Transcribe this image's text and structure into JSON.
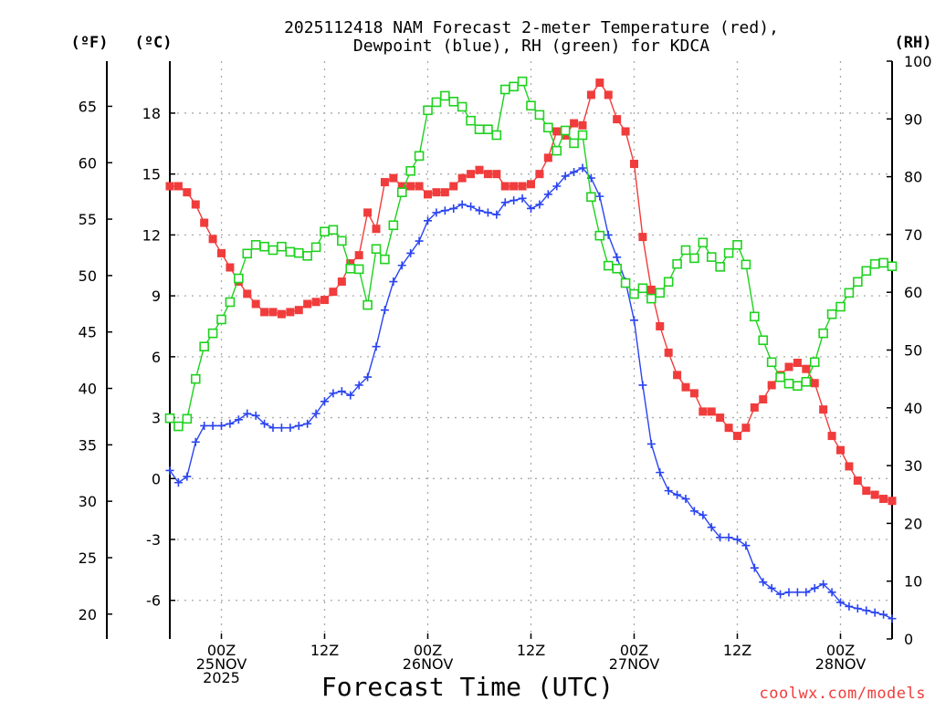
{
  "chart_data": {
    "type": "line",
    "title_line1": "2025112418 NAM Forecast 2-meter Temperature (red),",
    "title_line2": "Dewpoint (blue), RH (green) for KDCA",
    "xlabel": "Forecast Time (UTC)",
    "credit": "coolwx.com/models",
    "unit_f": "(ºF)",
    "unit_c": "(ºC)",
    "unit_rh": "(RH)",
    "x_unit": "forecast hour from 2025-11-24 18Z",
    "xlim": [
      0,
      84
    ],
    "ylim_c": [
      -7.9,
      20.56
    ],
    "ylim_rh": [
      0,
      100
    ],
    "ylim_f": [
      17.8,
      69.0
    ],
    "c_ticks": [
      "-6",
      "-3",
      "0",
      "3",
      "6",
      "9",
      "12",
      "15",
      "18"
    ],
    "f_ticks": [
      "20",
      "25",
      "30",
      "35",
      "40",
      "45",
      "50",
      "55",
      "60",
      "65"
    ],
    "rh_ticks": [
      "0",
      "10",
      "20",
      "30",
      "40",
      "50",
      "60",
      "70",
      "80",
      "90",
      "100"
    ],
    "x_ticks": [
      {
        "hour": 6,
        "line1": "00Z",
        "line2": "25NOV",
        "line3": "2025"
      },
      {
        "hour": 18,
        "line1": "12Z",
        "line2": "",
        "line3": ""
      },
      {
        "hour": 30,
        "line1": "00Z",
        "line2": "26NOV",
        "line3": ""
      },
      {
        "hour": 42,
        "line1": "12Z",
        "line2": "",
        "line3": ""
      },
      {
        "hour": 54,
        "line1": "00Z",
        "line2": "27NOV",
        "line3": ""
      },
      {
        "hour": 66,
        "line1": "12Z",
        "line2": "",
        "line3": ""
      },
      {
        "hour": 78,
        "line1": "00Z",
        "line2": "28NOV",
        "line3": ""
      }
    ],
    "grid": true,
    "series": [
      {
        "name": "Temperature",
        "unit": "C",
        "color": "#f03c3c",
        "marker": "filled-square",
        "values": [
          14.4,
          14.4,
          14.1,
          13.5,
          12.6,
          11.8,
          11.1,
          10.4,
          9.7,
          9.1,
          8.6,
          8.2,
          8.2,
          8.1,
          8.2,
          8.3,
          8.6,
          8.7,
          8.8,
          9.2,
          9.7,
          10.6,
          11.0,
          13.1,
          12.3,
          14.6,
          14.8,
          14.4,
          14.4,
          14.4,
          14.0,
          14.1,
          14.1,
          14.4,
          14.8,
          15.0,
          15.2,
          15.0,
          15.0,
          14.4,
          14.4,
          14.4,
          14.5,
          15.0,
          15.8,
          17.1,
          16.9,
          17.5,
          17.4,
          18.9,
          19.5,
          18.9,
          17.7,
          17.1,
          15.5,
          11.9,
          9.3,
          7.5,
          6.2,
          5.1,
          4.5,
          4.2,
          3.3,
          3.3,
          3.0,
          2.5,
          2.1,
          2.5,
          3.5,
          3.9,
          4.6,
          5.1,
          5.5,
          5.7,
          5.4,
          4.7,
          3.4,
          2.1,
          1.4,
          0.6,
          -0.1,
          -0.6,
          -0.8,
          -1.0,
          -1.1
        ]
      },
      {
        "name": "Dewpoint",
        "unit": "C",
        "color": "#2a44f0",
        "marker": "plus",
        "values": [
          0.4,
          -0.2,
          0.1,
          1.8,
          2.6,
          2.6,
          2.6,
          2.7,
          2.9,
          3.2,
          3.1,
          2.7,
          2.5,
          2.5,
          2.5,
          2.6,
          2.7,
          3.2,
          3.8,
          4.2,
          4.3,
          4.1,
          4.6,
          5.0,
          6.5,
          8.3,
          9.7,
          10.5,
          11.1,
          11.7,
          12.7,
          13.1,
          13.2,
          13.3,
          13.5,
          13.4,
          13.2,
          13.1,
          13.0,
          13.6,
          13.7,
          13.8,
          13.3,
          13.5,
          14.0,
          14.4,
          14.9,
          15.1,
          15.3,
          14.8,
          13.9,
          12.0,
          10.9,
          9.7,
          7.8,
          4.6,
          1.7,
          0.3,
          -0.6,
          -0.8,
          -1.0,
          -1.6,
          -1.8,
          -2.4,
          -2.9,
          -2.9,
          -3.0,
          -3.3,
          -4.4,
          -5.1,
          -5.4,
          -5.7,
          -5.6,
          -5.6,
          -5.6,
          -5.4,
          -5.2,
          -5.6,
          -6.1,
          -6.3,
          -6.4,
          -6.5,
          -6.6,
          -6.7,
          -6.9
        ]
      },
      {
        "name": "RH",
        "unit": "%",
        "color": "#1ed21e",
        "marker": "open-square",
        "values": [
          38.2,
          36.8,
          38.1,
          45.0,
          50.6,
          52.9,
          55.3,
          58.3,
          62.4,
          66.7,
          68.2,
          67.9,
          67.3,
          67.9,
          67.0,
          66.8,
          66.3,
          67.8,
          70.5,
          70.8,
          68.9,
          64.1,
          64.0,
          57.8,
          67.5,
          65.7,
          71.6,
          77.3,
          81.0,
          83.6,
          91.5,
          92.9,
          94.0,
          93.0,
          92.1,
          89.7,
          88.2,
          88.2,
          87.2,
          95.1,
          95.6,
          96.5,
          92.3,
          90.7,
          88.5,
          84.5,
          88.0,
          85.8,
          87.2,
          76.5,
          69.8,
          64.6,
          64.1,
          61.6,
          59.7,
          60.7,
          58.9,
          59.9,
          61.8,
          64.9,
          67.3,
          65.9,
          68.6,
          66.1,
          64.4,
          66.8,
          68.2,
          64.8,
          55.8,
          51.7,
          47.9,
          45.3,
          44.2,
          43.8,
          44.5,
          47.9,
          52.9,
          56.2,
          57.5,
          59.9,
          61.8,
          63.7,
          64.9,
          65.1,
          64.5
        ]
      }
    ]
  }
}
